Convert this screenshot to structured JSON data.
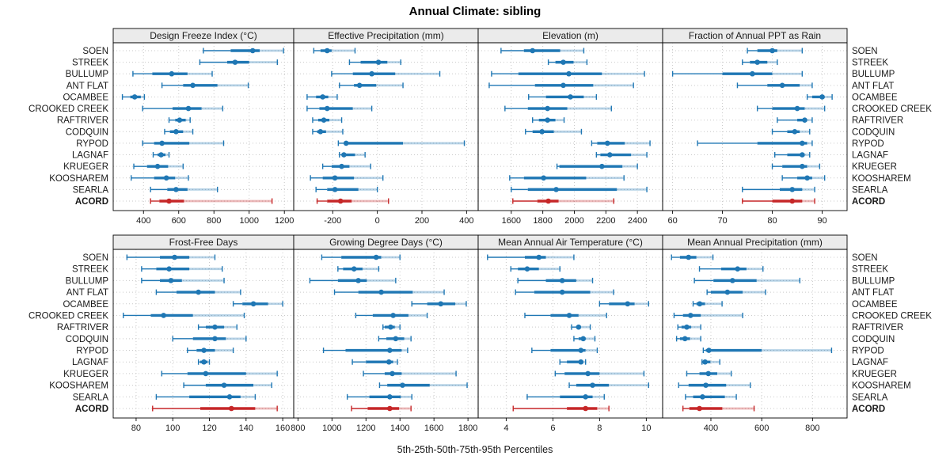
{
  "title": "Annual Climate: sibling",
  "caption": "5th-25th-50th-75th-95th Percentiles",
  "colors": {
    "normal": "#1f77b4",
    "highlight": "#c62728",
    "strip_bg": "#ebebeb",
    "panel_border": "#000000",
    "grid": "#c9c9c9",
    "text": "#1a1a1a"
  },
  "chart_data": {
    "type": "dotplot",
    "percentiles": [
      "5th",
      "25th",
      "50th",
      "75th",
      "95th"
    ],
    "stations": [
      "SOEN",
      "STREEK",
      "BULLUMP",
      "ANT FLAT",
      "OCAMBEE",
      "CROOKED CREEK",
      "RAFTRIVER",
      "CODQUIN",
      "RYPOD",
      "LAGNAF",
      "KRUEGER",
      "KOOSHAREM",
      "SEARLA",
      "ACORD"
    ],
    "highlight_station": "ACORD",
    "panels": [
      {
        "title": "Design Freeze Index (°C)",
        "grid_row": 0,
        "grid_col": 0,
        "domain": [
          228,
          1253
        ],
        "ticks": [
          400,
          600,
          800,
          1000,
          1200
        ],
        "series": [
          [
            740,
            895,
            1020,
            1060,
            1195
          ],
          [
            720,
            875,
            920,
            1000,
            1160
          ],
          [
            340,
            450,
            560,
            650,
            790
          ],
          [
            505,
            625,
            680,
            820,
            995
          ],
          [
            280,
            325,
            350,
            385,
            405
          ],
          [
            395,
            565,
            655,
            730,
            850
          ],
          [
            545,
            580,
            605,
            640,
            665
          ],
          [
            520,
            550,
            585,
            625,
            680
          ],
          [
            395,
            460,
            505,
            660,
            855
          ],
          [
            455,
            480,
            500,
            525,
            545
          ],
          [
            345,
            420,
            480,
            540,
            625
          ],
          [
            330,
            460,
            530,
            580,
            655
          ],
          [
            440,
            535,
            585,
            650,
            820
          ],
          [
            440,
            490,
            545,
            630,
            1130
          ]
        ]
      },
      {
        "title": "Effective Precipitation (mm)",
        "grid_row": 0,
        "grid_col": 1,
        "domain": [
          -375,
          452
        ],
        "ticks": [
          -200,
          0,
          200,
          400
        ],
        "series": [
          [
            -285,
            -255,
            -225,
            -205,
            -100
          ],
          [
            -125,
            -75,
            5,
            45,
            105
          ],
          [
            -205,
            -110,
            -25,
            80,
            280
          ],
          [
            -170,
            -105,
            -80,
            -5,
            115
          ],
          [
            -315,
            -275,
            -245,
            -220,
            -180
          ],
          [
            -315,
            -260,
            -225,
            -110,
            -25
          ],
          [
            -290,
            -265,
            -240,
            -215,
            -160
          ],
          [
            -290,
            -270,
            -255,
            -230,
            -155
          ],
          [
            -175,
            -150,
            -140,
            115,
            390
          ],
          [
            -170,
            -160,
            -150,
            -100,
            -55
          ],
          [
            -245,
            -205,
            -160,
            -125,
            -30
          ],
          [
            -300,
            -245,
            -190,
            -105,
            25
          ],
          [
            -275,
            -225,
            -190,
            -85,
            0
          ],
          [
            -270,
            -225,
            -165,
            -115,
            50
          ]
        ]
      },
      {
        "title": "Elevation (m)",
        "grid_row": 0,
        "grid_col": 2,
        "domain": [
          1390,
          2560
        ],
        "ticks": [
          1600,
          1800,
          2000,
          2200,
          2400
        ],
        "series": [
          [
            1535,
            1680,
            1735,
            1910,
            2060
          ],
          [
            1835,
            1880,
            1930,
            1995,
            2080
          ],
          [
            1475,
            1645,
            1965,
            2175,
            2445
          ],
          [
            1460,
            1750,
            1930,
            2120,
            2375
          ],
          [
            1710,
            1820,
            1975,
            2060,
            2140
          ],
          [
            1560,
            1705,
            1830,
            1955,
            2235
          ],
          [
            1735,
            1775,
            1830,
            1880,
            1935
          ],
          [
            1690,
            1735,
            1795,
            1870,
            2045
          ],
          [
            2110,
            2145,
            2210,
            2320,
            2480
          ],
          [
            2140,
            2165,
            2225,
            2360,
            2460
          ],
          [
            1890,
            1905,
            2175,
            2305,
            2400
          ],
          [
            1590,
            1680,
            1805,
            2075,
            2315
          ],
          [
            1600,
            1705,
            1885,
            2270,
            2460
          ],
          [
            1610,
            1765,
            1835,
            1900,
            2250
          ]
        ]
      },
      {
        "title": "Fraction of Annual PPT as Rain",
        "grid_row": 0,
        "grid_col": 3,
        "domain": [
          58,
          95
        ],
        "ticks": [
          60,
          70,
          80,
          90
        ],
        "series": [
          [
            75,
            77,
            80,
            81,
            86
          ],
          [
            74,
            75.5,
            77,
            79,
            81
          ],
          [
            60,
            70,
            76,
            80,
            86
          ],
          [
            73,
            79,
            82,
            85.5,
            88
          ],
          [
            87,
            88,
            90,
            90.5,
            92
          ],
          [
            77,
            80,
            85,
            86.5,
            90.5
          ],
          [
            81,
            85,
            86.5,
            87,
            88
          ],
          [
            80,
            83,
            84.5,
            85.5,
            87.5
          ],
          [
            65,
            77,
            86,
            87,
            88
          ],
          [
            80.5,
            83,
            86,
            86.5,
            87.5
          ],
          [
            80,
            82,
            86,
            87,
            89.5
          ],
          [
            82,
            85,
            87,
            88,
            90.5
          ],
          [
            74,
            81.5,
            84,
            86,
            88.5
          ],
          [
            74,
            80,
            84,
            86,
            88.5
          ]
        ]
      },
      {
        "title": "Frost-Free Days",
        "grid_row": 1,
        "grid_col": 0,
        "domain": [
          67.5,
          166
        ],
        "ticks": [
          80,
          100,
          120,
          140,
          160
        ],
        "series": [
          [
            75,
            93,
            101,
            109,
            123
          ],
          [
            83,
            91,
            98,
            109,
            127
          ],
          [
            83,
            93,
            99,
            105,
            128
          ],
          [
            91,
            102,
            114,
            123,
            137
          ],
          [
            133,
            138,
            144,
            152,
            160
          ],
          [
            73,
            88,
            95,
            111,
            139
          ],
          [
            114,
            118,
            123,
            128,
            135
          ],
          [
            100,
            111,
            123,
            129,
            140
          ],
          [
            108,
            113,
            117,
            123,
            133
          ],
          [
            114,
            115,
            117,
            119,
            120
          ],
          [
            94,
            108,
            118,
            140,
            157
          ],
          [
            106,
            118,
            128,
            144,
            154
          ],
          [
            91,
            109,
            131,
            137,
            145
          ],
          [
            89,
            115,
            132,
            145,
            157
          ]
        ]
      },
      {
        "title": "Growing Degree Days (°C)",
        "grid_row": 1,
        "grid_col": 1,
        "domain": [
          775,
          1860
        ],
        "ticks": [
          800,
          1000,
          1200,
          1400,
          1600,
          1800
        ],
        "series": [
          [
            940,
            1055,
            1260,
            1290,
            1400
          ],
          [
            1035,
            1065,
            1130,
            1180,
            1275
          ],
          [
            870,
            1035,
            1155,
            1205,
            1375
          ],
          [
            1015,
            1155,
            1290,
            1475,
            1660
          ],
          [
            1470,
            1560,
            1640,
            1725,
            1790
          ],
          [
            1140,
            1240,
            1360,
            1450,
            1560
          ],
          [
            1300,
            1310,
            1345,
            1370,
            1400
          ],
          [
            1275,
            1320,
            1375,
            1425,
            1465
          ],
          [
            950,
            1080,
            1340,
            1410,
            1445
          ],
          [
            1120,
            1200,
            1335,
            1360,
            1385
          ],
          [
            1185,
            1310,
            1355,
            1410,
            1730
          ],
          [
            1280,
            1325,
            1415,
            1575,
            1795
          ],
          [
            1090,
            1220,
            1340,
            1405,
            1470
          ],
          [
            1115,
            1210,
            1340,
            1395,
            1465
          ]
        ]
      },
      {
        "title": "Mean Annual Air Temperature (°C)",
        "grid_row": 1,
        "grid_col": 2,
        "domain": [
          2.8,
          10.7
        ],
        "ticks": [
          4,
          6,
          8,
          10
        ],
        "series": [
          [
            3.2,
            4.8,
            5.4,
            5.7,
            6.9
          ],
          [
            4.2,
            4.5,
            4.9,
            5.4,
            6.3
          ],
          [
            4.5,
            5.7,
            6.4,
            7.0,
            7.7
          ],
          [
            4.4,
            5.2,
            6.4,
            7.6,
            8.6
          ],
          [
            8.0,
            8.4,
            9.2,
            9.5,
            10.1
          ],
          [
            4.8,
            5.9,
            6.7,
            7.1,
            8.3
          ],
          [
            6.8,
            7.0,
            7.1,
            7.2,
            7.6
          ],
          [
            6.9,
            7.1,
            7.3,
            7.4,
            7.8
          ],
          [
            5.1,
            5.9,
            7.2,
            7.4,
            7.9
          ],
          [
            6.3,
            6.6,
            7.2,
            7.3,
            7.4
          ],
          [
            6.1,
            6.5,
            7.5,
            8.0,
            9.9
          ],
          [
            6.7,
            7.0,
            7.7,
            8.4,
            10.1
          ],
          [
            4.9,
            6.3,
            7.4,
            7.7,
            8.2
          ],
          [
            4.3,
            6.6,
            7.4,
            7.9,
            8.4
          ]
        ]
      },
      {
        "title": "Mean Annual Precipitation (mm)",
        "grid_row": 1,
        "grid_col": 3,
        "domain": [
          210,
          936
        ],
        "ticks": [
          400,
          600,
          800
        ],
        "series": [
          [
            245,
            278,
            312,
            343,
            408
          ],
          [
            355,
            440,
            505,
            540,
            605
          ],
          [
            335,
            410,
            485,
            580,
            750
          ],
          [
            385,
            400,
            465,
            525,
            615
          ],
          [
            330,
            343,
            356,
            377,
            444
          ],
          [
            255,
            290,
            320,
            360,
            525
          ],
          [
            270,
            284,
            305,
            322,
            360
          ],
          [
            265,
            278,
            298,
            318,
            360
          ],
          [
            370,
            380,
            392,
            600,
            875
          ],
          [
            365,
            371,
            377,
            398,
            435
          ],
          [
            305,
            355,
            390,
            425,
            480
          ],
          [
            273,
            312,
            380,
            460,
            555
          ],
          [
            300,
            330,
            367,
            455,
            500
          ],
          [
            290,
            315,
            355,
            445,
            570
          ]
        ]
      }
    ]
  }
}
